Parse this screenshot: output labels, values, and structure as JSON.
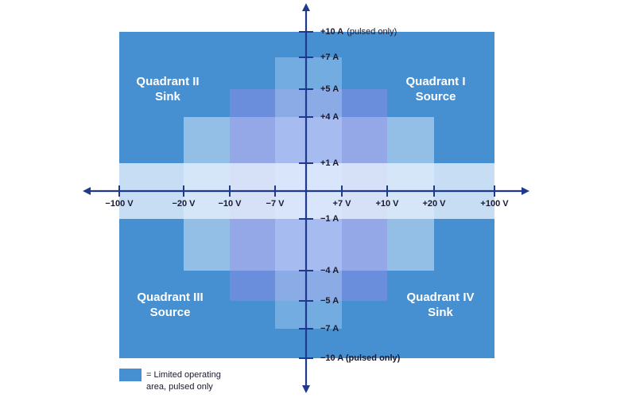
{
  "quadrants": [
    {
      "name": "Quadrant I",
      "role": "Source"
    },
    {
      "name": "Quadrant II",
      "role": "Sink"
    },
    {
      "name": "Quadrant III",
      "role": "Source"
    },
    {
      "name": "Quadrant IV",
      "role": "Sink"
    }
  ],
  "x_axis_labels": [
    "−100 V",
    "−20 V",
    "−10 V",
    "−7 V",
    "+7 V",
    "+10 V",
    "+20 V",
    "+100 V"
  ],
  "y_axis_labels": [
    "+10 A",
    "+7 A",
    "+5 A",
    "+4 A",
    "+1 A",
    "−1 A",
    "−4 A",
    "−5 A",
    "−7 A",
    "−10 A (pulsed only)"
  ],
  "top_label_note": "(pulsed only)",
  "legend": {
    "line1": "= Limited operating",
    "line2": "area, pulsed only"
  }
}
